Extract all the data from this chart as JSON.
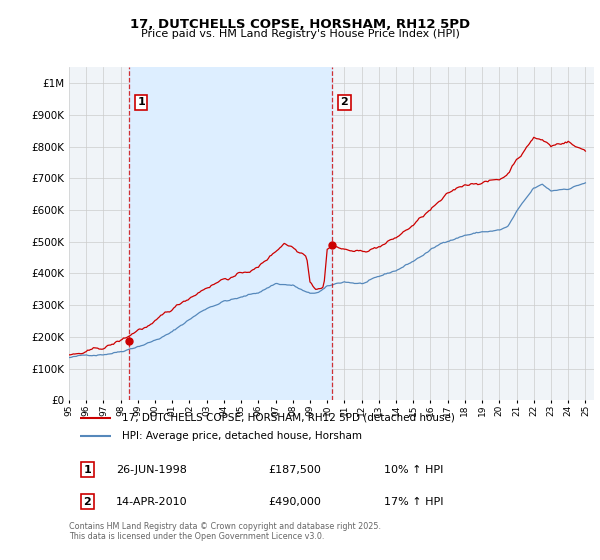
{
  "title": "17, DUTCHELLS COPSE, HORSHAM, RH12 5PD",
  "subtitle": "Price paid vs. HM Land Registry's House Price Index (HPI)",
  "legend_line1": "17, DUTCHELLS COPSE, HORSHAM, RH12 5PD (detached house)",
  "legend_line2": "HPI: Average price, detached house, Horsham",
  "annotation1_label": "1",
  "annotation1_date": "26-JUN-1998",
  "annotation1_price": "£187,500",
  "annotation1_hpi": "10% ↑ HPI",
  "annotation2_label": "2",
  "annotation2_date": "14-APR-2010",
  "annotation2_price": "£490,000",
  "annotation2_hpi": "17% ↑ HPI",
  "footer": "Contains HM Land Registry data © Crown copyright and database right 2025.\nThis data is licensed under the Open Government Licence v3.0.",
  "red_color": "#cc0000",
  "blue_color": "#5588bb",
  "shade_color": "#ddeeff",
  "grid_color": "#cccccc",
  "background_color": "#ffffff",
  "plot_bg_color": "#f0f4f8",
  "vline_color": "#cc0000",
  "ylim_min": 0,
  "ylim_max": 1050000,
  "year_start": 1995,
  "year_end": 2025,
  "sale1_year": 1998.48,
  "sale1_price": 187500,
  "sale2_year": 2010.28,
  "sale2_price": 490000
}
